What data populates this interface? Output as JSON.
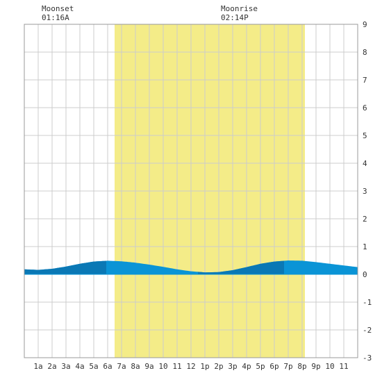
{
  "colors": {
    "daylight": "#f4ec88",
    "grid": "#cccccc",
    "frame": "#999999",
    "tide_light": "#0a94d6",
    "tide_dark": "#0a78b5",
    "text": "#333333"
  },
  "annotations": {
    "moonset": {
      "label": "Moonset",
      "time": "01:16A"
    },
    "moonrise": {
      "label": "Moonrise",
      "time": "02:14P"
    }
  },
  "chart_data": {
    "type": "area",
    "title": "",
    "xlabel": "",
    "ylabel": "",
    "x_unit": "hour",
    "xlim": [
      0,
      24
    ],
    "ylim": [
      -3,
      9
    ],
    "grid": true,
    "x_tick_labels": [
      "1a",
      "2a",
      "3a",
      "4a",
      "5a",
      "6a",
      "7a",
      "8a",
      "9a",
      "10",
      "11",
      "12",
      "1p",
      "2p",
      "3p",
      "4p",
      "5p",
      "6p",
      "7p",
      "8p",
      "9p",
      "10",
      "11"
    ],
    "y_ticks": [
      9,
      8,
      7,
      6,
      5,
      4,
      3,
      2,
      1,
      0,
      -1,
      -2,
      -3
    ],
    "daylight": {
      "start": 6.5,
      "end": 20.2
    },
    "dark_segments": [
      [
        0,
        5.9
      ],
      [
        12.5,
        18.7
      ]
    ],
    "series": [
      {
        "x": [
          0,
          1,
          2,
          3,
          4,
          5,
          6,
          7,
          8,
          9,
          10,
          11,
          12,
          13,
          14,
          15,
          16,
          17,
          18,
          19,
          20,
          21,
          22,
          23,
          24
        ],
        "y": [
          0.18,
          0.16,
          0.2,
          0.28,
          0.38,
          0.46,
          0.49,
          0.47,
          0.42,
          0.35,
          0.27,
          0.18,
          0.11,
          0.07,
          0.08,
          0.15,
          0.26,
          0.38,
          0.46,
          0.5,
          0.49,
          0.44,
          0.38,
          0.32,
          0.26
        ]
      }
    ],
    "markers": [
      {
        "label": "Moonset",
        "time": "01:16A",
        "x": 1.27
      },
      {
        "label": "Moonrise",
        "time": "02:14P",
        "x": 14.23
      }
    ]
  }
}
